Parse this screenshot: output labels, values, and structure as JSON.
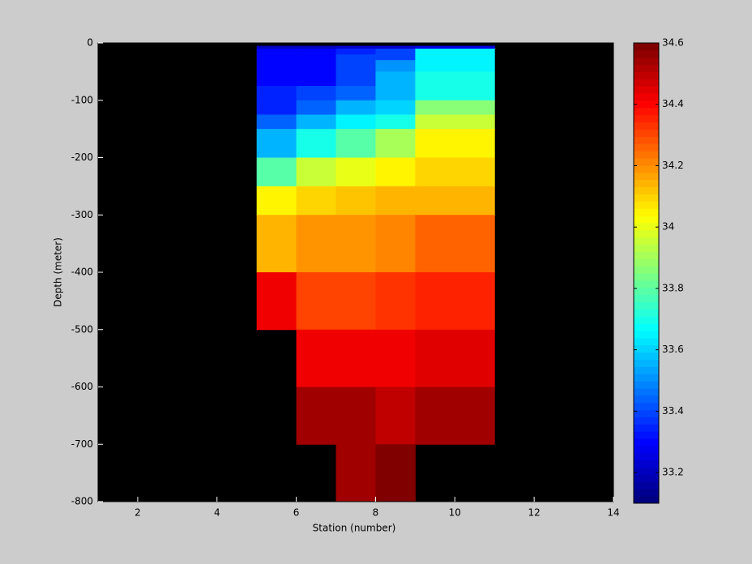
{
  "chart_data": {
    "type": "heatmap",
    "xlabel": "Station (number)",
    "ylabel": "Depth (meter)",
    "x_edges": [
      5,
      6,
      7,
      8,
      9,
      11
    ],
    "y_edges": [
      -5,
      -10,
      -20,
      -30,
      -50,
      -75,
      -100,
      -125,
      -150,
      -200,
      -250,
      -300,
      -400,
      -500,
      -600,
      -700,
      -800
    ],
    "values": [
      [
        33.2,
        33.2,
        33.22,
        33.22,
        33.25
      ],
      [
        33.3,
        33.3,
        33.35,
        33.4,
        33.65
      ],
      [
        33.3,
        33.3,
        33.4,
        33.4,
        33.65
      ],
      [
        33.3,
        33.3,
        33.4,
        33.5,
        33.65
      ],
      [
        33.3,
        33.3,
        33.4,
        33.55,
        33.7
      ],
      [
        33.35,
        33.4,
        33.45,
        33.55,
        33.7
      ],
      [
        33.35,
        33.45,
        33.55,
        33.6,
        33.85
      ],
      [
        33.45,
        33.55,
        33.65,
        33.7,
        33.95
      ],
      [
        33.55,
        33.7,
        33.8,
        33.9,
        34.05
      ],
      [
        33.8,
        33.95,
        34.0,
        34.05,
        34.1
      ],
      [
        34.05,
        34.1,
        34.12,
        34.15,
        34.15
      ],
      [
        34.15,
        34.18,
        34.2,
        34.22,
        34.25
      ],
      [
        34.42,
        34.3,
        34.3,
        34.32,
        34.35
      ],
      [
        null,
        34.42,
        34.42,
        34.42,
        34.45
      ],
      [
        null,
        34.55,
        34.55,
        34.5,
        34.55
      ],
      [
        null,
        null,
        34.55,
        34.6,
        null
      ]
    ],
    "xlim": [
      1,
      14
    ],
    "xticks": [
      2,
      4,
      6,
      8,
      10,
      12,
      14
    ],
    "ylim": [
      -800,
      0
    ],
    "yticks": [
      0,
      -100,
      -200,
      -300,
      -400,
      -500,
      -600,
      -700,
      -800
    ],
    "colormap": "jet",
    "clim": [
      33.1,
      34.6
    ],
    "cticks": [
      33.2,
      33.4,
      33.6,
      33.8,
      34,
      34.2,
      34.4,
      34.6
    ],
    "background": "#000000"
  }
}
